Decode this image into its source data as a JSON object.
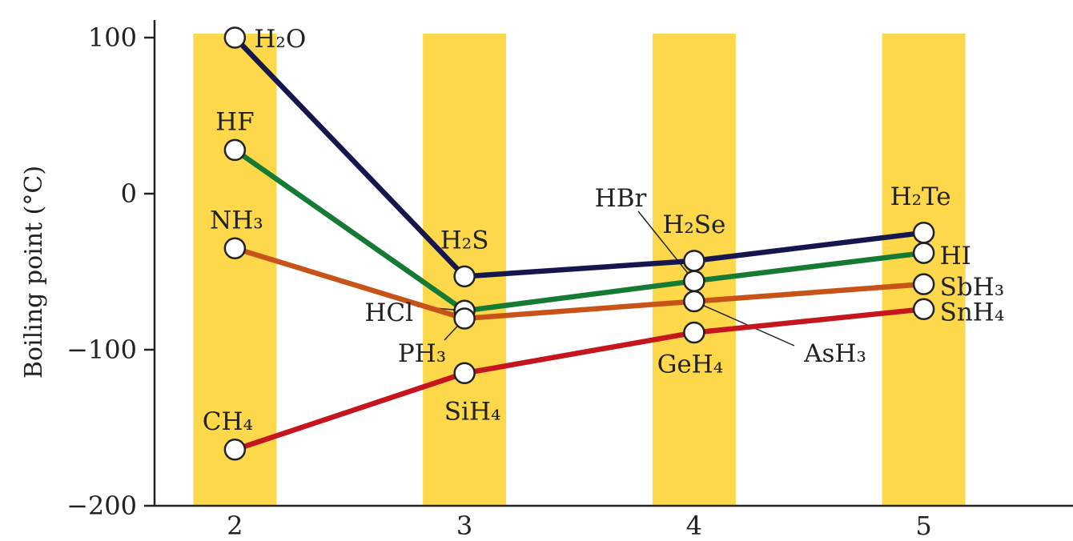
{
  "chart_data": {
    "type": "line",
    "xlabel": "",
    "ylabel": "Boiling point (°C)",
    "xlim": [
      1.65,
      5.65
    ],
    "ylim": [
      -200,
      100
    ],
    "x_ticks": [
      "2",
      "3",
      "4",
      "5"
    ],
    "y_ticks": [
      {
        "value": 100,
        "label": "100"
      },
      {
        "value": 0,
        "label": "0"
      },
      {
        "value": -100,
        "label": "−100"
      },
      {
        "value": -200,
        "label": "−200"
      }
    ],
    "band_color": "#fcd84a",
    "series": [
      {
        "group": "group-16",
        "color": "#16164f",
        "points": [
          {
            "x": 2,
            "y": 100,
            "name": "H₂O"
          },
          {
            "x": 3,
            "y": -53,
            "name": "H₂S"
          },
          {
            "x": 4,
            "y": -43,
            "name": "H₂Se"
          },
          {
            "x": 5,
            "y": -25,
            "name": "H₂Te"
          }
        ]
      },
      {
        "group": "group-17",
        "color": "#157a33",
        "points": [
          {
            "x": 2,
            "y": 28,
            "name": "HF"
          },
          {
            "x": 3,
            "y": -75,
            "name": "HCl"
          },
          {
            "x": 4,
            "y": -56,
            "name": "HBr"
          },
          {
            "x": 5,
            "y": -38,
            "name": "HI"
          }
        ]
      },
      {
        "group": "group-15",
        "color": "#c85318",
        "points": [
          {
            "x": 2,
            "y": -35,
            "name": "NH₃"
          },
          {
            "x": 3,
            "y": -80,
            "name": "PH₃"
          },
          {
            "x": 4,
            "y": -69,
            "name": "AsH₃"
          },
          {
            "x": 5,
            "y": -58,
            "name": "SbH₃"
          }
        ]
      },
      {
        "group": "group-14",
        "color": "#c4161c",
        "points": [
          {
            "x": 2,
            "y": -164,
            "name": "CH₄"
          },
          {
            "x": 3,
            "y": -115,
            "name": "SiH₄"
          },
          {
            "x": 4,
            "y": -89,
            "name": "GeH₄"
          },
          {
            "x": 5,
            "y": -74,
            "name": "SnH₄"
          }
        ]
      }
    ]
  }
}
